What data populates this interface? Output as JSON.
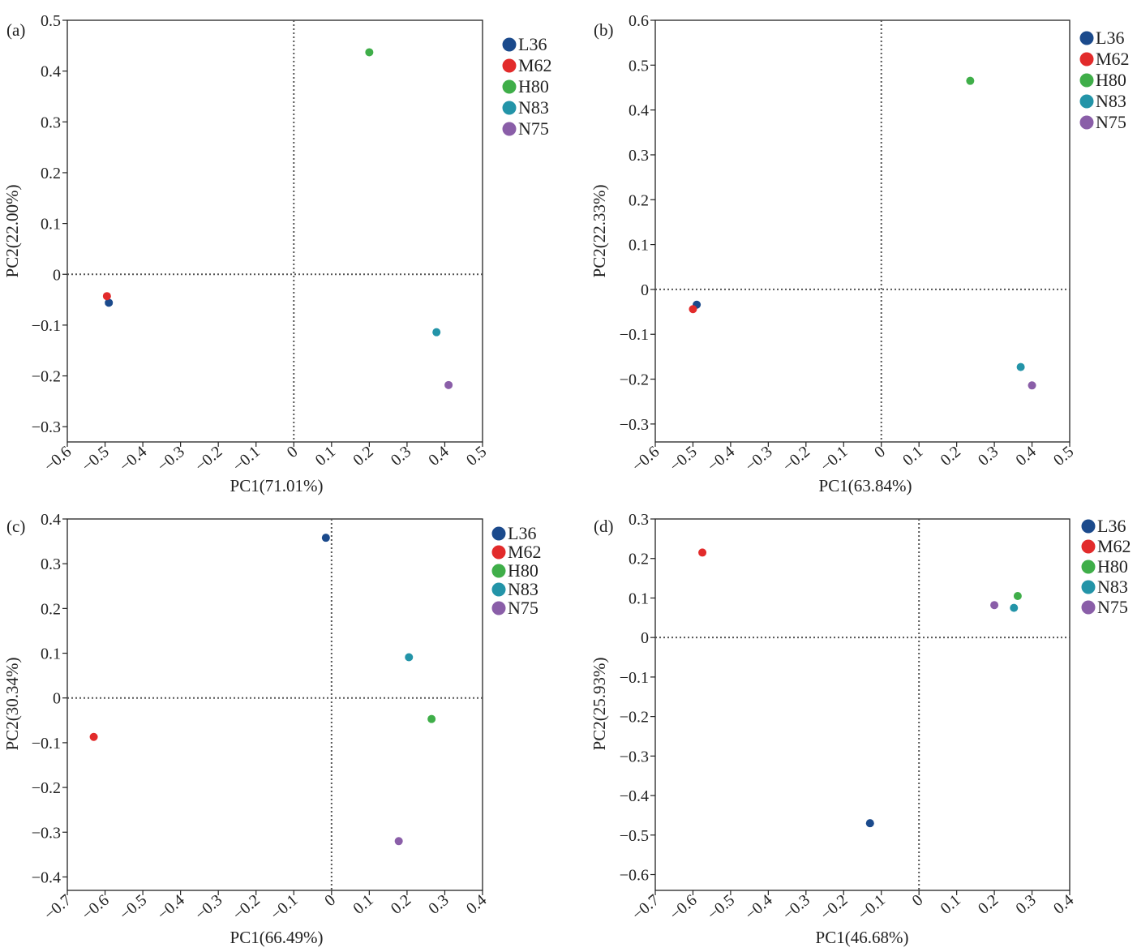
{
  "series_names": [
    "L36",
    "M62",
    "H80",
    "N83",
    "N75"
  ],
  "colors": {
    "L36": "#1b4a8c",
    "M62": "#e22b2b",
    "H80": "#3fae49",
    "N83": "#2394a8",
    "N75": "#8a5ea8"
  },
  "chart_data": [
    {
      "type": "scatter",
      "panel": "(a)",
      "xlabel": "PC1(71.01%)",
      "ylabel": "PC2(22.00%)",
      "xlim": [
        -0.6,
        0.5
      ],
      "ylim": [
        -0.33,
        0.5
      ],
      "xticks": [
        -0.6,
        -0.5,
        -0.4,
        -0.3,
        -0.2,
        -0.1,
        0,
        0.1,
        0.2,
        0.3,
        0.4,
        0.5
      ],
      "xtick_labels": [
        "-0.6",
        "-0.5",
        "-0.4",
        "-0.3",
        "-0.2",
        "-0.1",
        "0",
        "0.1",
        "0.2",
        "0.3",
        "0.4",
        "0.5"
      ],
      "yticks": [
        0.5,
        0.4,
        0.3,
        0.2,
        0.1,
        0,
        -0.1,
        -0.2,
        -0.3
      ],
      "ytick_labels": [
        "0.5",
        "0.4",
        "0.3",
        "0.2",
        "0.1",
        "0",
        "-0.1",
        "-0.2",
        "-0.3"
      ],
      "reference_lines": "dotted lines at x=0 and y=0",
      "points": [
        {
          "name": "L36",
          "x": -0.49,
          "y": -0.056
        },
        {
          "name": "M62",
          "x": -0.495,
          "y": -0.043
        },
        {
          "name": "H80",
          "x": 0.2,
          "y": 0.437
        },
        {
          "name": "N83",
          "x": 0.378,
          "y": -0.114
        },
        {
          "name": "N75",
          "x": 0.41,
          "y": -0.218
        }
      ]
    },
    {
      "type": "scatter",
      "panel": "(b)",
      "xlabel": "PC1(63.84%)",
      "ylabel": "PC2(22.33%)",
      "xlim": [
        -0.6,
        0.5
      ],
      "ylim": [
        -0.34,
        0.6
      ],
      "xticks": [
        -0.6,
        -0.5,
        -0.4,
        -0.3,
        -0.2,
        -0.1,
        0,
        0.1,
        0.2,
        0.3,
        0.4,
        0.5
      ],
      "xtick_labels": [
        "-0.6",
        "-0.5",
        "-0.4",
        "-0.3",
        "-0.2",
        "-0.1",
        "0",
        "0.1",
        "0.2",
        "0.3",
        "0.4",
        "0.5"
      ],
      "yticks": [
        0.6,
        0.5,
        0.4,
        0.3,
        0.2,
        0.1,
        0,
        -0.1,
        -0.2,
        -0.3
      ],
      "ytick_labels": [
        "0.6",
        "0.5",
        "0.4",
        "0.3",
        "0.2",
        "0.1",
        "0",
        "-0.1",
        "-0.2",
        "-0.3"
      ],
      "reference_lines": "dotted lines at x=0 and y=0",
      "points": [
        {
          "name": "L36",
          "x": -0.49,
          "y": -0.034
        },
        {
          "name": "M62",
          "x": -0.5,
          "y": -0.044
        },
        {
          "name": "H80",
          "x": 0.236,
          "y": 0.465
        },
        {
          "name": "N83",
          "x": 0.37,
          "y": -0.173
        },
        {
          "name": "N75",
          "x": 0.4,
          "y": -0.214
        }
      ]
    },
    {
      "type": "scatter",
      "panel": "(c)",
      "xlabel": "PC1(66.49%)",
      "ylabel": "PC2(30.34%)",
      "xlim": [
        -0.7,
        0.4
      ],
      "ylim": [
        -0.43,
        0.4
      ],
      "xticks": [
        -0.7,
        -0.6,
        -0.5,
        -0.4,
        -0.3,
        -0.2,
        -0.1,
        0,
        0.1,
        0.2,
        0.3,
        0.4
      ],
      "xtick_labels": [
        "-0.7",
        "-0.6",
        "-0.5",
        "-0.4",
        "-0.3",
        "-0.2",
        "-0.1",
        "0",
        "0.1",
        "0.2",
        "0.3",
        "0.4"
      ],
      "yticks": [
        0.4,
        0.3,
        0.2,
        0.1,
        0,
        -0.1,
        -0.2,
        -0.3,
        -0.4
      ],
      "ytick_labels": [
        "0.4",
        "0.3",
        "0.2",
        "0.1",
        "0",
        "-0.1",
        "-0.2",
        "-0.3",
        "-0.4"
      ],
      "reference_lines": "dotted lines at x=0 and y=0",
      "points": [
        {
          "name": "L36",
          "x": -0.015,
          "y": 0.358
        },
        {
          "name": "M62",
          "x": -0.63,
          "y": -0.087
        },
        {
          "name": "H80",
          "x": 0.265,
          "y": -0.047
        },
        {
          "name": "N83",
          "x": 0.205,
          "y": 0.091
        },
        {
          "name": "N75",
          "x": 0.178,
          "y": -0.32
        }
      ]
    },
    {
      "type": "scatter",
      "panel": "(d)",
      "xlabel": "PC1(46.68%)",
      "ylabel": "PC2(25.93%)",
      "xlim": [
        -0.7,
        0.4
      ],
      "ylim": [
        -0.64,
        0.3
      ],
      "xticks": [
        -0.7,
        -0.6,
        -0.5,
        -0.4,
        -0.3,
        -0.2,
        -0.1,
        0,
        0.1,
        0.2,
        0.3,
        0.4
      ],
      "xtick_labels": [
        "-0.7",
        "-0.6",
        "-0.5",
        "-0.4",
        "-0.3",
        "-0.2",
        "-0.1",
        "0",
        "0.1",
        "0.2",
        "0.3",
        "0.4"
      ],
      "yticks": [
        0.3,
        0.2,
        0.1,
        0,
        -0.1,
        -0.2,
        -0.3,
        -0.4,
        -0.5,
        -0.6
      ],
      "ytick_labels": [
        "0.3",
        "0.2",
        "0.1",
        "0",
        "-0.1",
        "-0.2",
        "-0.3",
        "-0.4",
        "-0.5",
        "-0.6"
      ],
      "reference_lines": "dotted lines at x=0 and y=0",
      "points": [
        {
          "name": "L36",
          "x": -0.13,
          "y": -0.47
        },
        {
          "name": "M62",
          "x": -0.575,
          "y": 0.215
        },
        {
          "name": "H80",
          "x": 0.262,
          "y": 0.105
        },
        {
          "name": "N83",
          "x": 0.252,
          "y": 0.075
        },
        {
          "name": "N75",
          "x": 0.2,
          "y": 0.082
        }
      ]
    }
  ]
}
